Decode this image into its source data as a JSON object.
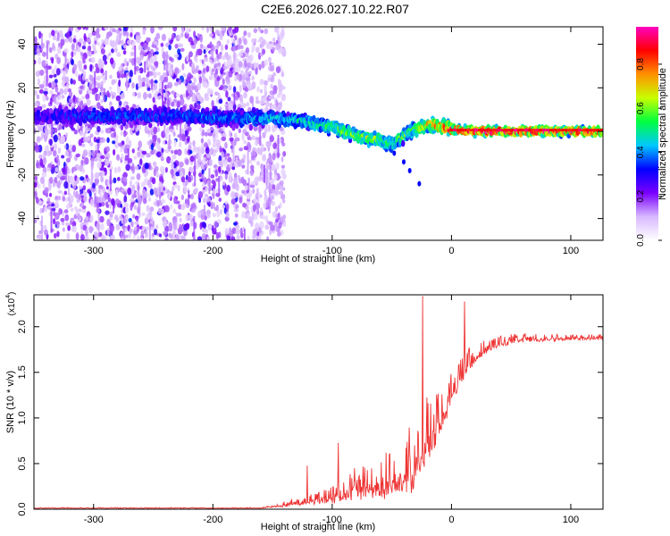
{
  "title": "C2E6.2026.027.10.22.R07",
  "chart_data": [
    {
      "type": "heatmap",
      "title": "C2E6.2026.027.10.22.R07",
      "xlabel": "Height of straight line (km)",
      "ylabel": "Frequency (Hz)",
      "xlim": [
        -350,
        127
      ],
      "ylim": [
        -50,
        48
      ],
      "xticks": [
        -300,
        -200,
        -100,
        0,
        100
      ],
      "yticks": [
        -40,
        -20,
        0,
        20,
        40
      ],
      "colorbar": {
        "label": "Normalized spectral amplitude",
        "range": [
          0,
          0.97
        ],
        "ticks": [
          "0.0",
          "0.2",
          "0.4",
          "0.6",
          "0.8"
        ],
        "colors": [
          "#ffffff",
          "#d8b8ff",
          "#7a00ff",
          "#0000ff",
          "#00c8ff",
          "#00ff40",
          "#c8ff00",
          "#ff9000",
          "#ff0000",
          "#ff00c0"
        ]
      },
      "ridge": {
        "x": [
          -340,
          -300,
          -260,
          -220,
          -180,
          -150,
          -130,
          -110,
          -100,
          -90,
          -80,
          -70,
          -60,
          -50,
          -45,
          -40,
          -35,
          -30,
          -25,
          -20,
          -15,
          -10,
          -5,
          0,
          20,
          60,
          127
        ],
        "freq": [
          7,
          7,
          7,
          7,
          6,
          6,
          5,
          3,
          2,
          0,
          -2,
          -3,
          -4,
          -6,
          -4,
          -2,
          0,
          1,
          2,
          3,
          3,
          2,
          2,
          1,
          0,
          0,
          0
        ],
        "peak": [
          0.25,
          0.3,
          0.3,
          0.3,
          0.35,
          0.4,
          0.45,
          0.5,
          0.55,
          0.6,
          0.62,
          0.62,
          0.6,
          0.55,
          0.55,
          0.6,
          0.6,
          0.65,
          0.7,
          0.75,
          0.8,
          0.85,
          0.9,
          0.92,
          0.95,
          0.95,
          0.92
        ]
      },
      "noise_extent_x": [
        -350,
        -150
      ]
    },
    {
      "type": "line",
      "xlabel": "Height of straight line (km)",
      "ylabel": "SNR (10 * v/v)",
      "scale_label": "(x10",
      "scale_exp": "4",
      "xlim": [
        -350,
        127
      ],
      "ylim": [
        0,
        2.35
      ],
      "xticks": [
        -300,
        -200,
        -100,
        0,
        100
      ],
      "yticks": [
        "0.0",
        "0.5",
        "1.0",
        "1.5",
        "2.0"
      ],
      "color": "#ee3333",
      "envelope": {
        "x": [
          -350,
          -160,
          -150,
          -140,
          -120,
          -110,
          -100,
          -90,
          -80,
          -70,
          -60,
          -50,
          -40,
          -35,
          -30,
          -25,
          -20,
          -15,
          -10,
          -5,
          0,
          5,
          10,
          15,
          20,
          25,
          30,
          40,
          50,
          60,
          80,
          100,
          127
        ],
        "base": [
          0.01,
          0.01,
          0.02,
          0.03,
          0.05,
          0.07,
          0.09,
          0.12,
          0.15,
          0.15,
          0.15,
          0.18,
          0.2,
          0.25,
          0.3,
          0.45,
          0.55,
          0.7,
          0.85,
          1.0,
          1.15,
          1.3,
          1.45,
          1.55,
          1.62,
          1.68,
          1.72,
          1.78,
          1.82,
          1.84,
          1.85,
          1.86,
          1.86
        ],
        "amp": [
          0.01,
          0.01,
          0.03,
          0.06,
          0.12,
          0.16,
          0.2,
          0.3,
          0.38,
          0.4,
          0.45,
          0.55,
          0.65,
          0.75,
          0.8,
          0.85,
          0.9,
          0.8,
          0.6,
          0.45,
          0.35,
          0.3,
          0.28,
          0.25,
          0.22,
          0.18,
          0.15,
          0.12,
          0.1,
          0.09,
          0.08,
          0.08,
          0.08
        ]
      },
      "spikes": [
        {
          "x": -24,
          "y": 2.33
        },
        {
          "x": 11,
          "y": 2.27
        },
        {
          "x": -95,
          "y": 0.72
        },
        {
          "x": -121,
          "y": 0.47
        }
      ]
    }
  ]
}
